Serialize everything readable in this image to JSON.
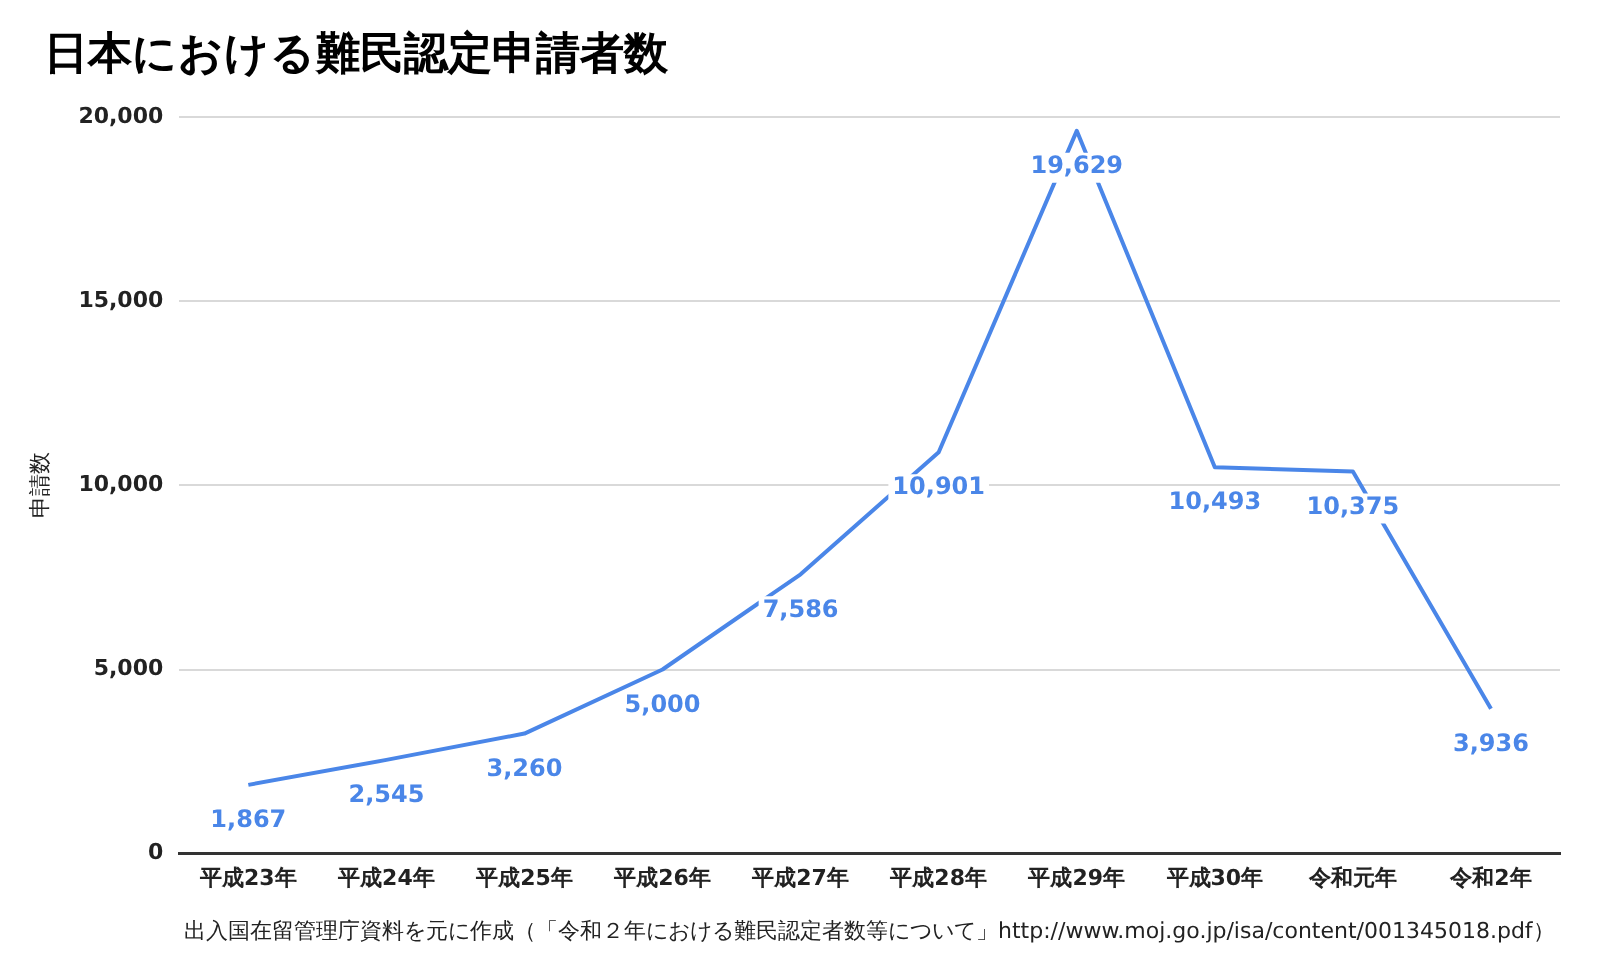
{
  "chart_data": {
    "type": "line",
    "title": "日本における難民認定申請者数",
    "ylabel": "申請数",
    "categories": [
      "平成23年",
      "平成24年",
      "平成25年",
      "平成26年",
      "平成27年",
      "平成28年",
      "平成29年",
      "平成30年",
      "令和元年",
      "令和2年"
    ],
    "series": [
      {
        "color": "#4a86e8",
        "values": [
          1867,
          2545,
          3260,
          5000,
          7586,
          10901,
          19629,
          10493,
          10375,
          3936
        ],
        "value_labels": [
          "1,867",
          "2,545",
          "3,260",
          "5,000",
          "7,586",
          "10,901",
          "19,629",
          "10,493",
          "10,375",
          "3,936"
        ]
      }
    ],
    "ylim": [
      0,
      20000
    ],
    "yticks": [
      {
        "value": 0,
        "label": "0"
      },
      {
        "value": 5000,
        "label": "5,000"
      },
      {
        "value": 10000,
        "label": "10,000"
      },
      {
        "value": 15000,
        "label": "15,000"
      },
      {
        "value": 20000,
        "label": "20,000"
      }
    ],
    "grid": "y",
    "legend": false,
    "marker": "none",
    "line_style": "solid",
    "annotations": [
      "出入国在留管理庁資料を元に作成（「令和２年における難民認定者数等について」http://www.moj.go.jp/isa/content/001345018.pdf）"
    ]
  }
}
